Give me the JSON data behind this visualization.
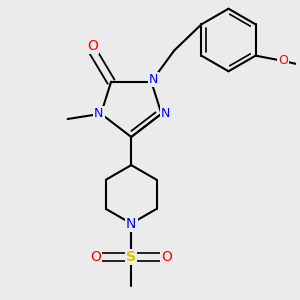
{
  "bg_color": "#ebebeb",
  "atom_colors": {
    "N": "#0000ff",
    "O": "#ff0000",
    "S": "#cccc00",
    "C": "#000000"
  },
  "bond_color": "#000000",
  "bond_width": 1.5,
  "figsize": [
    3.0,
    3.0
  ],
  "dpi": 100,
  "xlim": [
    -1.4,
    1.4
  ],
  "ylim": [
    -1.55,
    1.3
  ]
}
